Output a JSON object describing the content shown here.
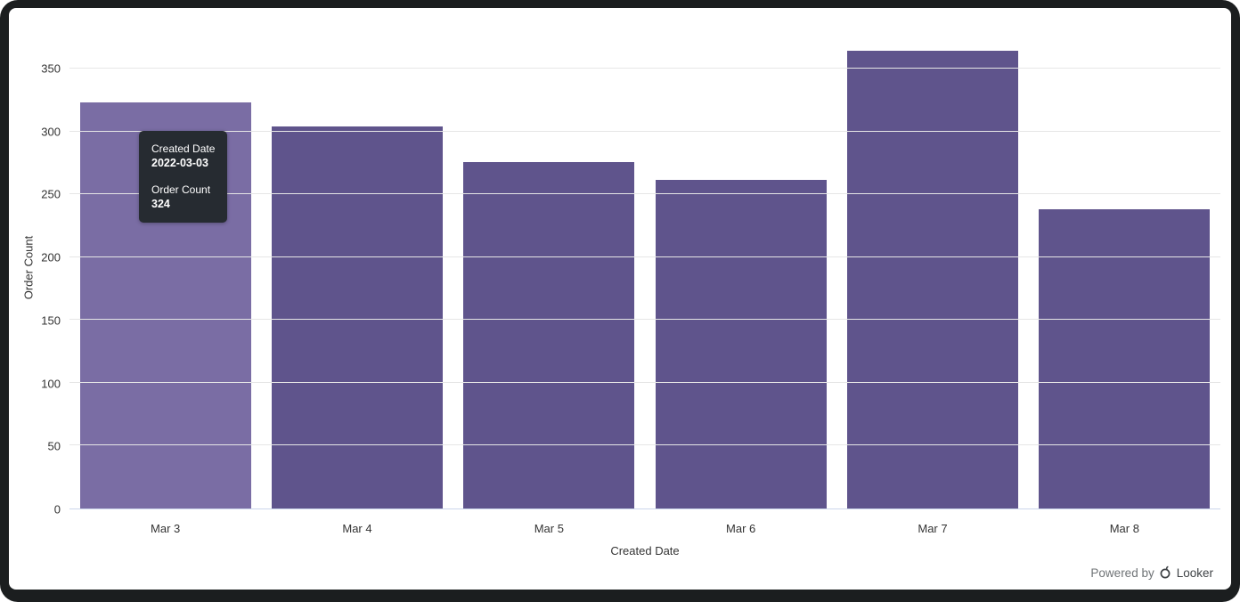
{
  "window": {
    "frame_color": "#1b1e1f",
    "card_color": "#ffffff"
  },
  "chart_data": {
    "type": "bar",
    "title": "",
    "categories": [
      "Mar 3",
      "Mar 4",
      "Mar 5",
      "Mar 6",
      "Mar 7",
      "Mar 8"
    ],
    "values": [
      324,
      305,
      276,
      262,
      365,
      239
    ],
    "xlabel": "Created Date",
    "ylabel": "Order Count",
    "yticks": [
      0,
      50,
      100,
      150,
      200,
      250,
      300,
      350
    ],
    "ylim": [
      0,
      384
    ],
    "grid": true,
    "legend": "none",
    "highlighted_category": "Mar 3",
    "colors": {
      "bar": "#5f548c",
      "bar_highlighted": "#7a6da4",
      "bar_border": "#ffffff",
      "grid": "#e6e6e6",
      "axis_line": "#ccd6eb",
      "tick_label": "#333333",
      "axis_title": "#333333"
    }
  },
  "tooltip": {
    "bg_color": "#262b31",
    "text_color": "#ffffff",
    "rows": [
      {
        "label": "Created Date",
        "value": "2022-03-03"
      },
      {
        "label": "Order Count",
        "value": "324"
      }
    ]
  },
  "footer": {
    "powered_by": "Powered by",
    "brand": "Looker"
  }
}
